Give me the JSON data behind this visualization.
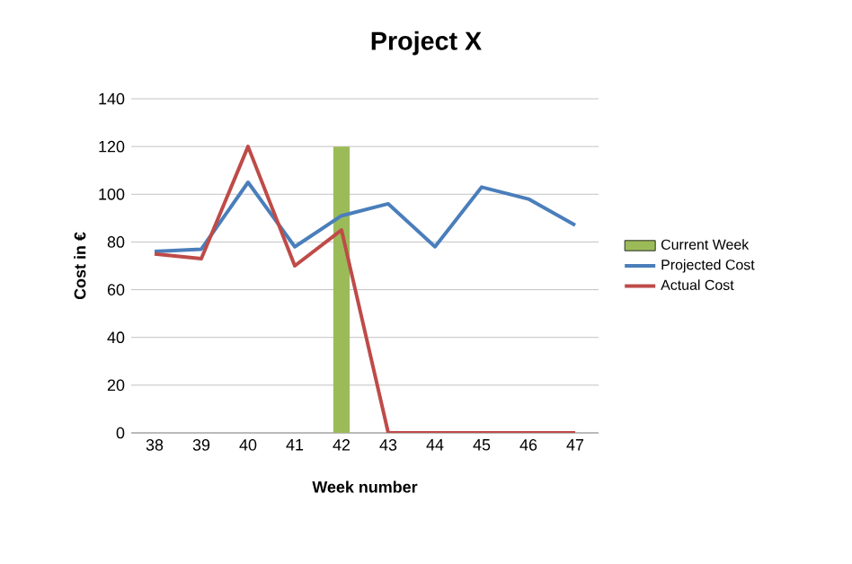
{
  "chart_data": {
    "type": "line",
    "title": "Project X",
    "xlabel": "Week number",
    "ylabel": "Cost in €",
    "categories": [
      "38",
      "39",
      "40",
      "41",
      "42",
      "43",
      "44",
      "45",
      "46",
      "47"
    ],
    "series": [
      {
        "name": "Current Week",
        "type": "bar",
        "color": "#9bbb59",
        "values": [
          null,
          null,
          null,
          null,
          120,
          null,
          null,
          null,
          null,
          null
        ]
      },
      {
        "name": "Projected Cost",
        "color": "#4a7ebb",
        "values": [
          76,
          77,
          105,
          78,
          91,
          96,
          78,
          103,
          98,
          87
        ]
      },
      {
        "name": "Actual Cost",
        "color": "#be4b48",
        "values": [
          75,
          73,
          120,
          70,
          85,
          0,
          0,
          0,
          0,
          0
        ]
      }
    ],
    "ylim": [
      0,
      140
    ],
    "yticks": [
      0,
      20,
      40,
      60,
      80,
      100,
      120,
      140
    ],
    "grid": "y",
    "legend": "right",
    "marker": "none",
    "line_style": "solid"
  }
}
